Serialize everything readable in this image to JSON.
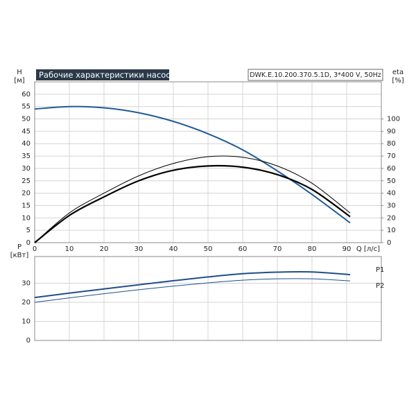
{
  "chart_data": [
    {
      "type": "line",
      "title": "Рабочие характеристики насоса",
      "subtitle": "DWK.E.10.200.370.5.1D, 3*400 V, 50Hz",
      "y_label": "H",
      "y_unit": "[м]",
      "y2_label": "eta",
      "y2_unit": "[%]",
      "x_label": "Q [л/с]",
      "x": [
        0,
        10,
        20,
        30,
        40,
        50,
        60,
        70,
        80,
        91
      ],
      "xlim": [
        0,
        100
      ],
      "xticks": [
        0,
        10,
        20,
        30,
        40,
        50,
        60,
        70,
        80,
        90
      ],
      "xtick_labels": true,
      "ylim": [
        0,
        65
      ],
      "yticks": [
        0,
        5,
        10,
        15,
        20,
        25,
        30,
        35,
        40,
        45,
        50,
        55,
        60
      ],
      "y2lim": [
        0,
        130
      ],
      "y2ticks": [
        0,
        10,
        20,
        30,
        40,
        50,
        60,
        70,
        80,
        90,
        100
      ],
      "grid": true,
      "series": [
        {
          "color": "#1f5a96",
          "line_width": 2,
          "values": [
            54,
            55,
            54.5,
            52.5,
            49,
            44,
            37.5,
            29,
            19.5,
            8
          ]
        },
        {
          "color": "#000000",
          "line_width": 1,
          "axis": "y2",
          "values": [
            0,
            24,
            40,
            54,
            64,
            69.5,
            69,
            62,
            48,
            24
          ]
        },
        {
          "color": "#000000",
          "line_width": 2.2,
          "axis": "y2",
          "values": [
            0,
            22,
            37,
            50,
            58.5,
            62,
            61,
            55,
            43,
            21
          ]
        }
      ]
    },
    {
      "type": "line",
      "y_label": "P",
      "y_unit": "[кВт]",
      "x": [
        0,
        10,
        20,
        30,
        40,
        50,
        60,
        70,
        80,
        91
      ],
      "xlim": [
        0,
        100
      ],
      "xticks": [
        0,
        10,
        20,
        30,
        40,
        50,
        60,
        70,
        80,
        90
      ],
      "xtick_labels": false,
      "ylim": [
        0,
        44
      ],
      "yticks": [
        0,
        10,
        20,
        30
      ],
      "grid": true,
      "series": [
        {
          "name": "P1",
          "color": "#1f4e89",
          "line_width": 2,
          "values": [
            22.5,
            24.8,
            27,
            29.2,
            31.3,
            33.3,
            35,
            35.8,
            35.9,
            34.5
          ]
        },
        {
          "name": "P2",
          "color": "#1f4e89",
          "line_width": 1,
          "values": [
            20,
            22.3,
            24.5,
            26.6,
            28.5,
            30.2,
            31.6,
            32.3,
            32.3,
            31.2
          ]
        }
      ]
    }
  ]
}
